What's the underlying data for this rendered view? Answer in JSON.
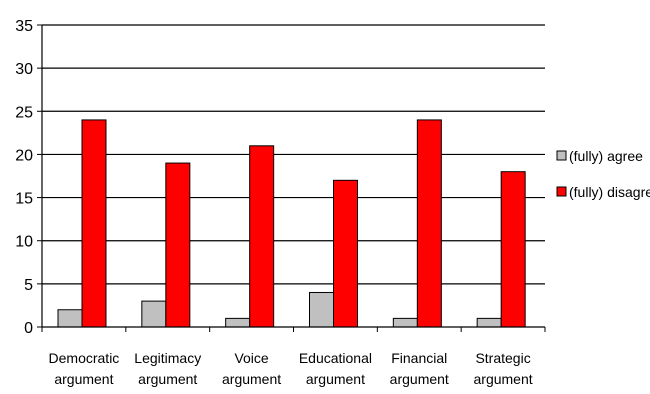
{
  "chart_data": {
    "type": "bar",
    "title": "",
    "xlabel": "",
    "ylabel": "",
    "ylim": [
      0,
      35
    ],
    "yticks": [
      0,
      5,
      10,
      15,
      20,
      25,
      30,
      35
    ],
    "grid": true,
    "legend_position": "right",
    "categories": [
      [
        "Democratic",
        "argument"
      ],
      [
        "Legitimacy",
        "argument"
      ],
      [
        "Voice",
        "argument"
      ],
      [
        "Educational",
        "argument"
      ],
      [
        "Financial",
        "argument"
      ],
      [
        "Strategic",
        "argument"
      ]
    ],
    "series": [
      {
        "name": "(fully) agree",
        "color": "#c0c0c0",
        "values": [
          2,
          3,
          1,
          4,
          1,
          1
        ]
      },
      {
        "name": "(fully) disagree",
        "color": "#ff0000",
        "values": [
          24,
          19,
          21,
          17,
          24,
          18
        ]
      }
    ]
  }
}
